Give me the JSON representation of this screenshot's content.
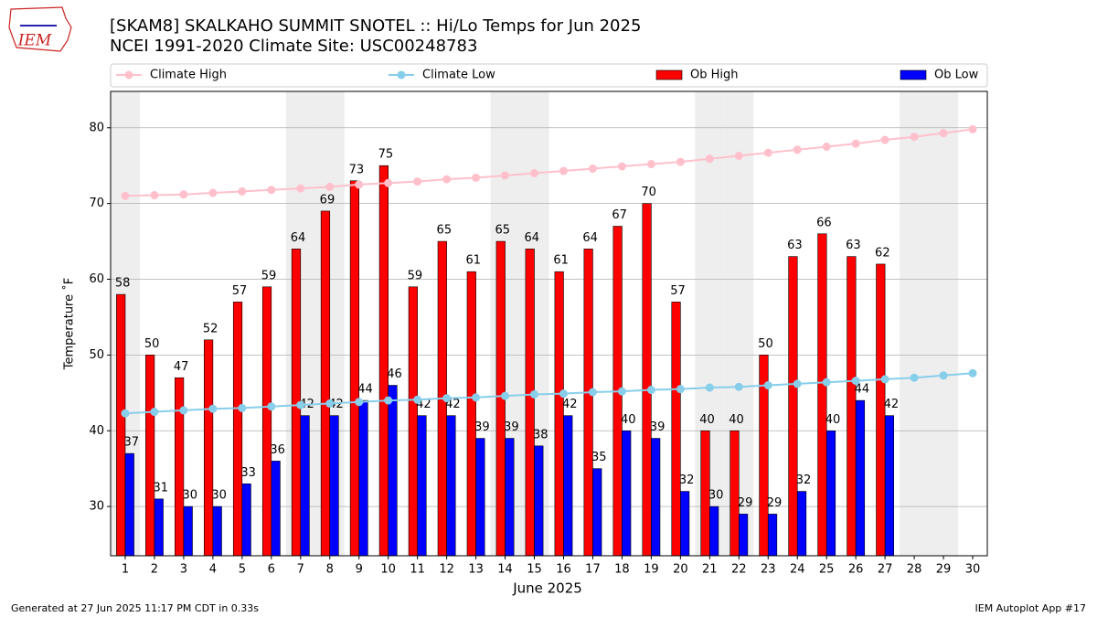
{
  "logo": "IEM",
  "footer": {
    "left": "Generated at 27 Jun 2025 11:17 PM CDT in 0.33s",
    "right": "IEM Autoplot App #17"
  },
  "chart_data": {
    "type": "bar",
    "title": "[SKAM8] SKALKAHO SUMMIT SNOTEL :: Hi/Lo Temps for Jun 2025",
    "subtitle": "NCEI 1991-2020 Climate Site: USC00248783",
    "x_label": "June 2025",
    "y_label": "Temperature ˚F",
    "x": [
      1,
      2,
      3,
      4,
      5,
      6,
      7,
      8,
      9,
      10,
      11,
      12,
      13,
      14,
      15,
      16,
      17,
      18,
      19,
      20,
      21,
      22,
      23,
      24,
      25,
      26,
      27,
      28,
      29,
      30
    ],
    "xlim": [
      0.5,
      30.5
    ],
    "xticks": [
      1,
      2,
      3,
      4,
      5,
      6,
      7,
      8,
      9,
      10,
      11,
      12,
      13,
      14,
      15,
      16,
      17,
      18,
      19,
      20,
      21,
      22,
      23,
      24,
      25,
      26,
      27,
      28,
      29,
      30
    ],
    "ylim": [
      23.5,
      84.8
    ],
    "yticks": [
      30,
      40,
      50,
      60,
      70,
      80
    ],
    "grid": true,
    "shaded_days": [
      1,
      7,
      8,
      14,
      15,
      21,
      22,
      28,
      29
    ],
    "shade_color": "#eeeeee",
    "series": [
      {
        "name": "Climate High",
        "kind": "line",
        "color": "#ffc0cb",
        "values": [
          71.0,
          71.1,
          71.2,
          71.4,
          71.6,
          71.8,
          72.0,
          72.2,
          72.5,
          72.7,
          72.9,
          73.2,
          73.4,
          73.7,
          74.0,
          74.3,
          74.6,
          74.9,
          75.2,
          75.5,
          75.9,
          76.3,
          76.7,
          77.1,
          77.5,
          77.9,
          78.4,
          78.8,
          79.3,
          79.8
        ]
      },
      {
        "name": "Climate Low",
        "kind": "line",
        "color": "#87ceeb",
        "values": [
          42.3,
          42.5,
          42.7,
          42.9,
          43.0,
          43.2,
          43.4,
          43.6,
          43.8,
          44.0,
          44.1,
          44.3,
          44.4,
          44.6,
          44.8,
          44.9,
          45.1,
          45.2,
          45.4,
          45.5,
          45.7,
          45.8,
          46.0,
          46.2,
          46.4,
          46.6,
          46.8,
          47.0,
          47.3,
          47.6
        ]
      },
      {
        "name": "Ob High",
        "kind": "bar",
        "color": "#ff0000",
        "values": [
          58,
          50,
          47,
          52,
          57,
          59,
          64,
          69,
          73,
          75,
          59,
          65,
          61,
          65,
          64,
          61,
          64,
          67,
          70,
          57,
          40,
          40,
          50,
          63,
          66,
          63,
          62,
          null,
          null,
          null
        ]
      },
      {
        "name": "Ob Low",
        "kind": "bar",
        "color": "#0000ff",
        "values": [
          37,
          31,
          30,
          30,
          33,
          36,
          42,
          42,
          44,
          46,
          42,
          42,
          39,
          39,
          38,
          42,
          35,
          40,
          39,
          32,
          30,
          29,
          29,
          32,
          40,
          44,
          42,
          null,
          null,
          null
        ]
      }
    ]
  }
}
